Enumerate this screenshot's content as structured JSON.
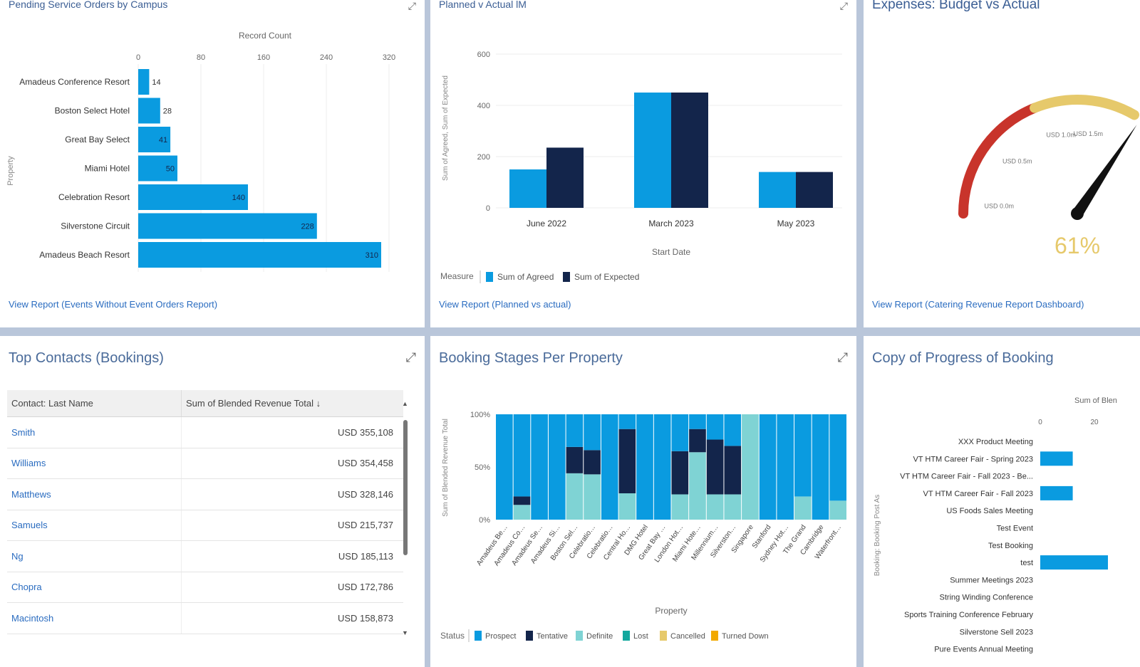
{
  "panels": {
    "pending": {
      "title": "Pending Service Orders by Campus",
      "xlabel": "Record Count",
      "ylabel": "Property",
      "link": "View Report (Events Without Event Orders Report)"
    },
    "planned": {
      "title": "Planned v Actual lM",
      "xlabel": "Start Date",
      "ylabel": "Sum of Agreed, Sum of Expected",
      "legend_label": "Measure",
      "link": "View Report (Planned vs actual)"
    },
    "expenses": {
      "title": "Expenses: Budget vs Actual",
      "value": "61%",
      "link": "View Report (Catering Revenue Report Dashboard)",
      "gauge_labels": [
        "USD 0.0m",
        "USD 0.5m",
        "USD 1.0m",
        "USD 1.5m"
      ]
    },
    "contacts": {
      "title": "Top Contacts (Bookings)",
      "col1": "Contact: Last Name",
      "col2": "Sum of Blended Revenue Total ↓",
      "rows": [
        {
          "name": "Smith",
          "value": "USD 355,108"
        },
        {
          "name": "Williams",
          "value": "USD 354,458"
        },
        {
          "name": "Matthews",
          "value": "USD 328,146"
        },
        {
          "name": "Samuels",
          "value": "USD 215,737"
        },
        {
          "name": "Ng",
          "value": "USD 185,113"
        },
        {
          "name": "Chopra",
          "value": "USD 172,786"
        },
        {
          "name": "Macintosh",
          "value": "USD 158,873"
        }
      ]
    },
    "stages": {
      "title": "Booking Stages Per Property",
      "xlabel": "Property",
      "ylabel": "Sum of Blended Revenue Total",
      "legend_label": "Status"
    },
    "progress": {
      "title": "Copy of Progress of Booking",
      "xlabel": "Sum of Blen",
      "ylabel": "Booking: Booking Post As",
      "ticks": [
        "0",
        "20"
      ],
      "events": [
        "XXX Product Meeting",
        "VT HTM Career Fair - Spring 2023",
        "VT HTM Career Fair - Fall 2023 - Be...",
        "VT HTM Career Fair - Fall 2023",
        "US Foods Sales Meeting",
        "Test Event",
        "Test Booking",
        "test",
        "Summer Meetings 2023",
        "String Winding Conference",
        "Sports Training Conference February",
        "Silverstone Sell 2023",
        "Pure Events Annual Meeting"
      ],
      "values": [
        0,
        12,
        0,
        12,
        0,
        0,
        0,
        25,
        0,
        0,
        0,
        0,
        0
      ]
    }
  },
  "chart_data": [
    {
      "type": "bar",
      "orientation": "horizontal",
      "title": "Pending Service Orders by Campus",
      "xlabel": "Record Count",
      "ylabel": "Property",
      "categories": [
        "Amadeus Conference Resort",
        "Boston Select Hotel",
        "Great Bay Select",
        "Miami Hotel",
        "Celebration Resort",
        "Silverstone Circuit",
        "Amadeus Beach Resort"
      ],
      "values": [
        14,
        28,
        41,
        50,
        140,
        228,
        310
      ],
      "xlim": [
        0,
        320
      ],
      "ticks": [
        0,
        80,
        160,
        240,
        320
      ]
    },
    {
      "type": "bar",
      "title": "Planned v Actual lM",
      "xlabel": "Start Date",
      "categories": [
        "June 2022",
        "March 2023",
        "May 2023"
      ],
      "series": [
        {
          "name": "Sum of Agreed",
          "values": [
            150,
            450,
            140
          ],
          "color": "#0a9be0"
        },
        {
          "name": "Sum of Expected",
          "values": [
            235,
            450,
            140
          ],
          "color": "#13254b"
        }
      ],
      "ylim": [
        0,
        600
      ],
      "ticks": [
        0,
        200,
        400,
        600
      ]
    },
    {
      "type": "bar",
      "stacked": true,
      "title": "Booking Stages Per Property",
      "xlabel": "Property",
      "ylabel": "Sum of Blended Revenue Total",
      "ticks": [
        "0%",
        "50%",
        "100%"
      ],
      "categories": [
        "Amadeus Beach Resort",
        "Amadeus Conference Resort",
        "Amadeus Select",
        "Amadeus Silverstone",
        "Boston Select Hotel",
        "Celebration Resort",
        "Celebration Spa",
        "Central Hotel",
        "DMG Hotel",
        "Great Bay Select",
        "London Hotel",
        "Miami Hotel",
        "Millennium Hotel",
        "Silverstone Circuit",
        "Singapore",
        "Stanford",
        "Sydney Hotel",
        "The Grand",
        "Cambridge",
        "Waterfront Hotel"
      ],
      "series": [
        {
          "name": "Prospect",
          "color": "#0a9be0",
          "values": [
            100,
            78,
            100,
            100,
            31,
            34,
            100,
            79,
            100,
            100,
            35,
            14,
            24,
            80,
            0,
            100,
            100,
            78,
            100,
            82
          ]
        },
        {
          "name": "Tentative",
          "color": "#13254b",
          "values": [
            0,
            8,
            0,
            0,
            25,
            23,
            0,
            61,
            0,
            0,
            41,
            22,
            52,
            46,
            0,
            0,
            0,
            0,
            0,
            0
          ]
        },
        {
          "name": "Definite",
          "color": "#7fd3d4",
          "values": [
            0,
            14,
            0,
            0,
            44,
            43,
            0,
            25,
            0,
            0,
            24,
            64,
            24,
            24,
            100,
            0,
            0,
            22,
            0,
            18
          ]
        },
        {
          "name": "Lost",
          "color": "#13a89e",
          "values": [
            0,
            0,
            0,
            0,
            0,
            0,
            0,
            0,
            0,
            0,
            0,
            0,
            0,
            0,
            0,
            0,
            0,
            0,
            0,
            0
          ]
        },
        {
          "name": "Cancelled",
          "color": "#e6c96b",
          "values": [
            0,
            0,
            0,
            0,
            0,
            0,
            0,
            0,
            0,
            0,
            0,
            0,
            0,
            0,
            0,
            0,
            0,
            0,
            0,
            0
          ]
        },
        {
          "name": "Turned Down",
          "color": "#f2a900",
          "values": [
            0,
            0,
            0,
            0,
            0,
            0,
            0,
            0,
            0,
            0,
            0,
            0,
            0,
            0,
            0,
            0,
            0,
            0,
            0,
            0
          ]
        }
      ]
    },
    {
      "type": "gauge",
      "title": "Expenses: Budget vs Actual",
      "value_pct": 61
    }
  ],
  "colors": {
    "accent": "#0a9be0",
    "dark": "#13254b",
    "link": "#2a6cc0"
  }
}
